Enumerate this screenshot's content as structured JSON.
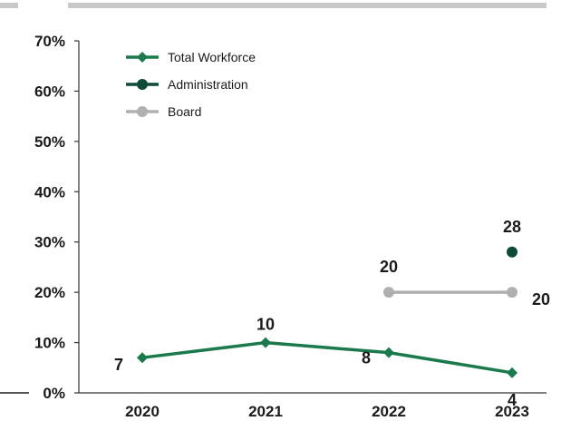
{
  "chart_data": {
    "type": "line",
    "categories": [
      "2020",
      "2021",
      "2022",
      "2023"
    ],
    "y_ticks": [
      "0%",
      "10%",
      "20%",
      "30%",
      "40%",
      "50%",
      "60%",
      "70%"
    ],
    "ylim": [
      0,
      70
    ],
    "grid": false,
    "legend_position": "top-left",
    "series": [
      {
        "name": "Total Workforce",
        "color": "#1a7a4c",
        "marker": "diamond",
        "values": [
          7,
          10,
          8,
          4
        ],
        "labels": [
          "7",
          "10",
          "8",
          "4"
        ]
      },
      {
        "name": "Administration",
        "color": "#0d4a3a",
        "marker": "circle",
        "values": [
          null,
          null,
          null,
          28
        ],
        "labels": [
          "",
          "",
          "",
          "28"
        ]
      },
      {
        "name": "Board",
        "color": "#b0b0b0",
        "marker": "circle",
        "values": [
          null,
          null,
          20,
          20
        ],
        "labels": [
          "",
          "",
          "20",
          "20"
        ]
      }
    ]
  }
}
